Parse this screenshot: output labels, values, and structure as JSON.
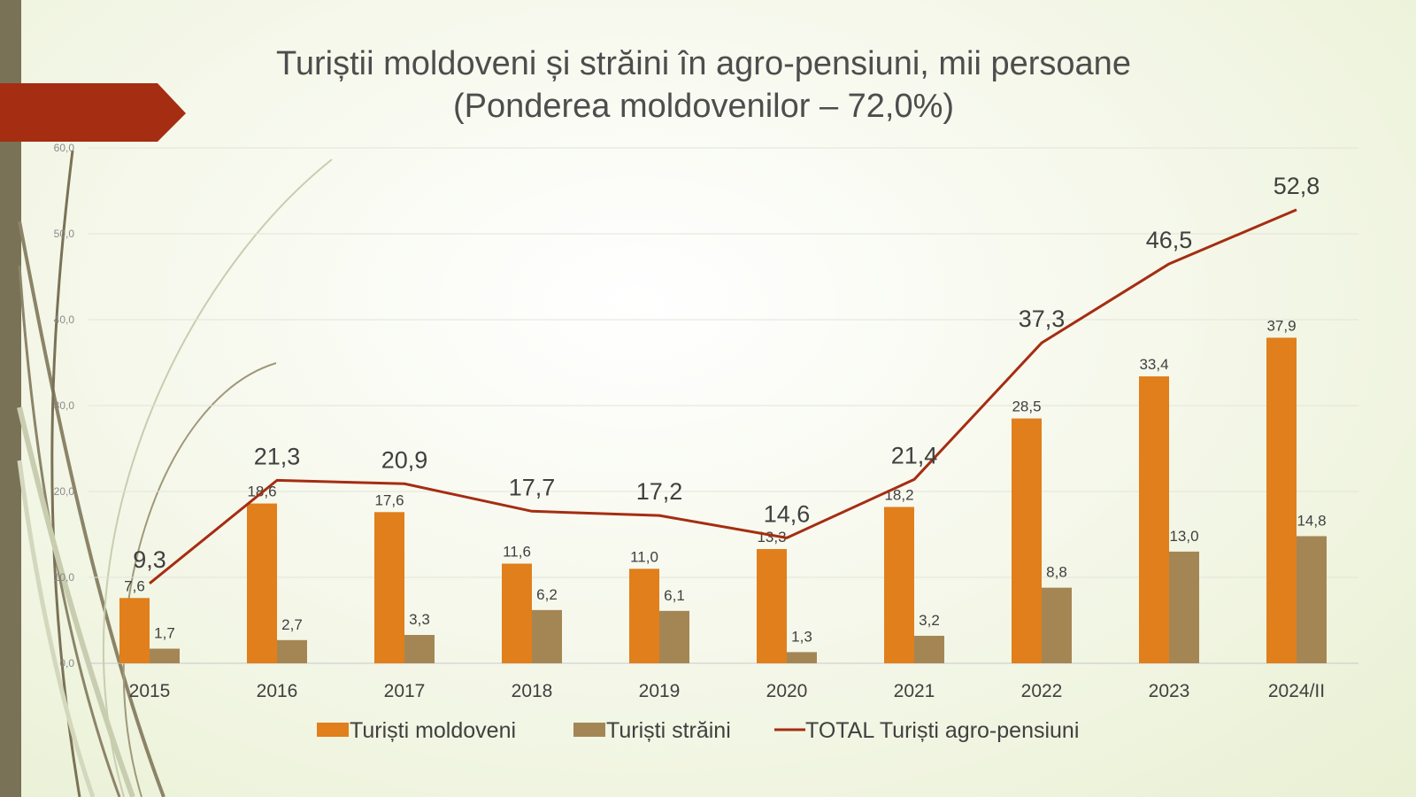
{
  "slide": {
    "title_line1": "Turiștii moldoveni și străini în agro-pensiuni, mii persoane",
    "title_line2": "(Ponderea moldovenilor – 72,0%)"
  },
  "colors": {
    "moldoveni": "#e07f1c",
    "straini": "#a48655",
    "total": "#a52d12",
    "accent_band": "#a52d12",
    "left_bar": "#7a7256"
  },
  "chart_data": {
    "type": "bar",
    "title": "Turiștii moldoveni și străini în agro-pensiuni, mii persoane",
    "subtitle": "(Ponderea moldovenilor – 72,0%)",
    "categories": [
      "2015",
      "2016",
      "2017",
      "2018",
      "2019",
      "2020",
      "2021",
      "2022",
      "2023",
      "2024/II"
    ],
    "series": [
      {
        "name": "Turiști moldoveni",
        "kind": "bar",
        "values": [
          7.6,
          18.6,
          17.6,
          11.6,
          11.0,
          13.3,
          18.2,
          28.5,
          33.4,
          37.9
        ],
        "labels": [
          "7,6",
          "18,6",
          "17,6",
          "11,6",
          "11,0",
          "13,3",
          "18,2",
          "28,5",
          "33,4",
          "37,9"
        ]
      },
      {
        "name": "Turiști străini",
        "kind": "bar",
        "values": [
          1.7,
          2.7,
          3.3,
          6.2,
          6.1,
          1.3,
          3.2,
          8.8,
          13.0,
          14.8
        ],
        "labels": [
          "1,7",
          "2,7",
          "3,3",
          "6,2",
          "6,1",
          "1,3",
          "3,2",
          "8,8",
          "13,0",
          "14,8"
        ]
      },
      {
        "name": "TOTAL Turiști agro-pensiuni",
        "kind": "line",
        "values": [
          9.3,
          21.3,
          20.9,
          17.7,
          17.2,
          14.6,
          21.4,
          37.3,
          46.5,
          52.8
        ],
        "labels": [
          "9,3",
          "21,3",
          "20,9",
          "17,7",
          "17,2",
          "14,6",
          "21,4",
          "37,3",
          "46,5",
          "52,8"
        ]
      }
    ],
    "ylim": [
      0,
      60
    ],
    "y_ticks": [
      0,
      10,
      20,
      30,
      40,
      50,
      60
    ],
    "y_tick_labels": [
      "0,0",
      "10,0",
      "20,0",
      "30,0",
      "40,0",
      "50,0",
      "60,0"
    ],
    "grid": true,
    "legend": "bottom"
  }
}
